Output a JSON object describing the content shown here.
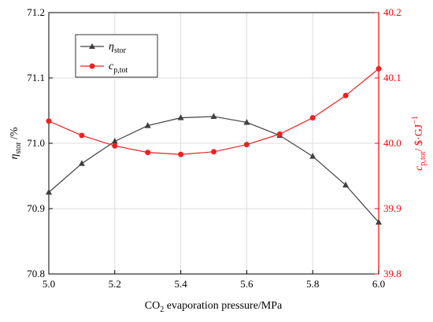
{
  "chart_data": {
    "type": "line",
    "xlabel": "CO2 evaporation pressure/MPa",
    "xlim": [
      5.0,
      6.0
    ],
    "x_ticks": [
      "5.0",
      "5.2",
      "5.4",
      "5.6",
      "5.8",
      "6.0"
    ],
    "x": [
      5.0,
      5.1,
      5.2,
      5.3,
      5.4,
      5.5,
      5.6,
      5.7,
      5.8,
      5.9,
      6.0
    ],
    "left_axis": {
      "label": "ηstor /%",
      "ylim": [
        70.8,
        71.2
      ],
      "ticks": [
        "70.8",
        "70.9",
        "71.0",
        "71.1",
        "71.2"
      ],
      "color": "#333333"
    },
    "right_axis": {
      "label": "cp,tot/ $·GJ−1",
      "ylim": [
        39.8,
        40.2
      ],
      "ticks": [
        "39.8",
        "39.9",
        "40.0",
        "40.1",
        "40.2"
      ],
      "color": "#ff0000"
    },
    "series": [
      {
        "name": "ηstor",
        "axis": "left",
        "color": "#404040",
        "marker": "triangle",
        "values": [
          70.925,
          70.969,
          71.003,
          71.027,
          71.039,
          71.041,
          71.032,
          71.012,
          70.98,
          70.936,
          70.879
        ]
      },
      {
        "name": "cp,tot",
        "axis": "right",
        "color": "#ee2222",
        "marker": "circle",
        "values": [
          40.034,
          40.012,
          39.996,
          39.986,
          39.983,
          39.987,
          39.998,
          40.014,
          40.039,
          40.073,
          40.114
        ]
      }
    ],
    "grid": true,
    "legend_position": "top-left"
  }
}
